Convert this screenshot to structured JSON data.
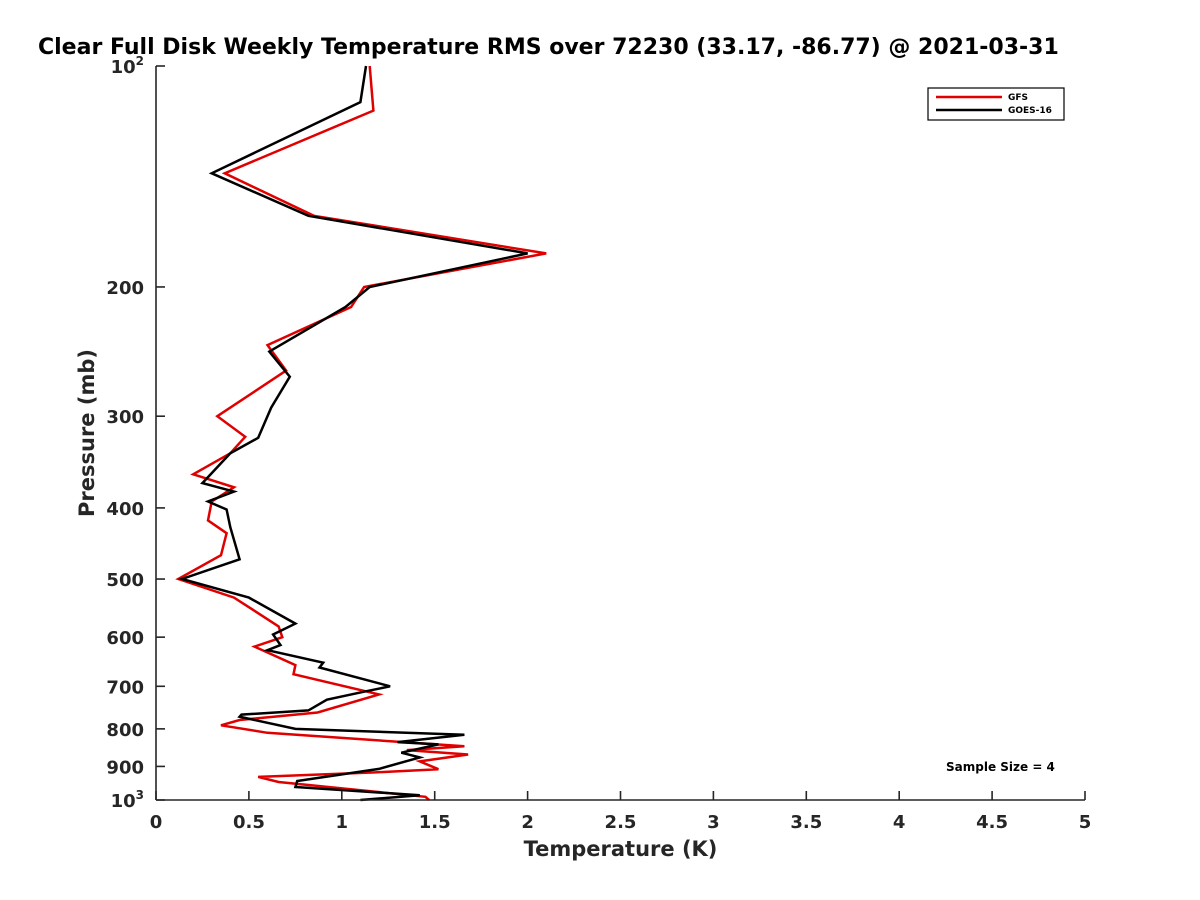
{
  "chart_data": {
    "type": "line",
    "title": "Clear Full Disk Weekly Temperature RMS over 72230 (33.17, -86.77) @ 2021-03-31",
    "xlabel": "Temperature (K)",
    "ylabel": "Pressure (mb)",
    "xlim": [
      0,
      5
    ],
    "ylim": [
      100,
      1000
    ],
    "y_scale": "log",
    "y_reversed": true,
    "grid": false,
    "legend_position": "top-right",
    "x_ticks": [
      "0",
      "0.5",
      "1",
      "1.5",
      "2",
      "2.5",
      "3",
      "3.5",
      "4",
      "4.5",
      "5"
    ],
    "y_ticks": [
      {
        "value": 100,
        "base": "10",
        "exp": "2"
      },
      {
        "value": 200,
        "label": "200"
      },
      {
        "value": 300,
        "label": "300"
      },
      {
        "value": 400,
        "label": "400"
      },
      {
        "value": 500,
        "label": "500"
      },
      {
        "value": 600,
        "label": "600"
      },
      {
        "value": 700,
        "label": "700"
      },
      {
        "value": 800,
        "label": "800"
      },
      {
        "value": 900,
        "label": "900"
      },
      {
        "value": 1000,
        "base": "10",
        "exp": "3"
      }
    ],
    "annotation": "Sample Size = 4",
    "series": [
      {
        "name": "GFS",
        "color": "#e00000",
        "x": [
          1.15,
          1.17,
          0.37,
          0.85,
          2.1,
          1.12,
          1.05,
          0.6,
          0.7,
          0.33,
          0.48,
          0.4,
          0.2,
          0.42,
          0.3,
          0.28,
          0.38,
          0.35,
          0.12,
          0.42,
          0.66,
          0.68,
          0.53,
          0.75,
          0.74,
          1.2,
          0.87,
          0.45,
          0.35,
          0.6,
          1.66,
          1.35,
          1.68,
          1.42,
          1.52,
          1.18,
          0.55,
          0.66,
          1.45,
          1.47
        ],
        "y": [
          100,
          115,
          140,
          160,
          180,
          200,
          213,
          240,
          260,
          300,
          320,
          337,
          360,
          375,
          392,
          416,
          433,
          464,
          500,
          530,
          580,
          600,
          618,
          655,
          674,
          718,
          760,
          778,
          791,
          810,
          845,
          855,
          867,
          886,
          908,
          917,
          930,
          945,
          990,
          1000
        ],
        "values": [
          1.15,
          1.17,
          0.37,
          0.85,
          2.1,
          1.12,
          1.05,
          0.6,
          0.7,
          0.33,
          0.48,
          0.4,
          0.2,
          0.42,
          0.3,
          0.28,
          0.38,
          0.35,
          0.12,
          0.42,
          0.66,
          0.68,
          0.53,
          0.75,
          0.74,
          1.2,
          0.87,
          0.45,
          0.35,
          0.6,
          1.66,
          1.35,
          1.68,
          1.42,
          1.52,
          1.18,
          0.55,
          0.66,
          1.45,
          1.47
        ]
      },
      {
        "name": "GOES-16",
        "color": "#000000",
        "x": [
          1.13,
          1.1,
          0.3,
          0.82,
          2.0,
          1.15,
          1.02,
          0.61,
          0.72,
          0.62,
          0.55,
          0.4,
          0.25,
          0.42,
          0.28,
          0.38,
          0.4,
          0.45,
          0.14,
          0.5,
          0.75,
          0.63,
          0.67,
          0.6,
          0.9,
          0.88,
          1.26,
          1.12,
          0.92,
          0.82,
          0.46,
          0.45,
          0.75,
          1.66,
          1.3,
          1.52,
          1.32,
          1.42,
          1.2,
          0.76,
          0.75,
          1.42,
          1.1
        ],
        "y": [
          100,
          112,
          140,
          160,
          180,
          200,
          213,
          245,
          265,
          292,
          321,
          337,
          370,
          380,
          392,
          402,
          425,
          470,
          500,
          530,
          575,
          595,
          615,
          625,
          650,
          660,
          700,
          712,
          730,
          755,
          765,
          770,
          800,
          815,
          834,
          840,
          862,
          875,
          907,
          942,
          960,
          985,
          1000
        ],
        "values": [
          1.13,
          1.1,
          0.3,
          0.82,
          2.0,
          1.15,
          1.02,
          0.61,
          0.72,
          0.62,
          0.55,
          0.4,
          0.25,
          0.42,
          0.28,
          0.38,
          0.4,
          0.45,
          0.14,
          0.5,
          0.75,
          0.63,
          0.67,
          0.6,
          0.9,
          0.88,
          1.26,
          1.12,
          0.92,
          0.82,
          0.46,
          0.45,
          0.75,
          1.66,
          1.3,
          1.52,
          1.32,
          1.42,
          1.2,
          0.76,
          0.75,
          1.42,
          1.1
        ]
      }
    ]
  }
}
